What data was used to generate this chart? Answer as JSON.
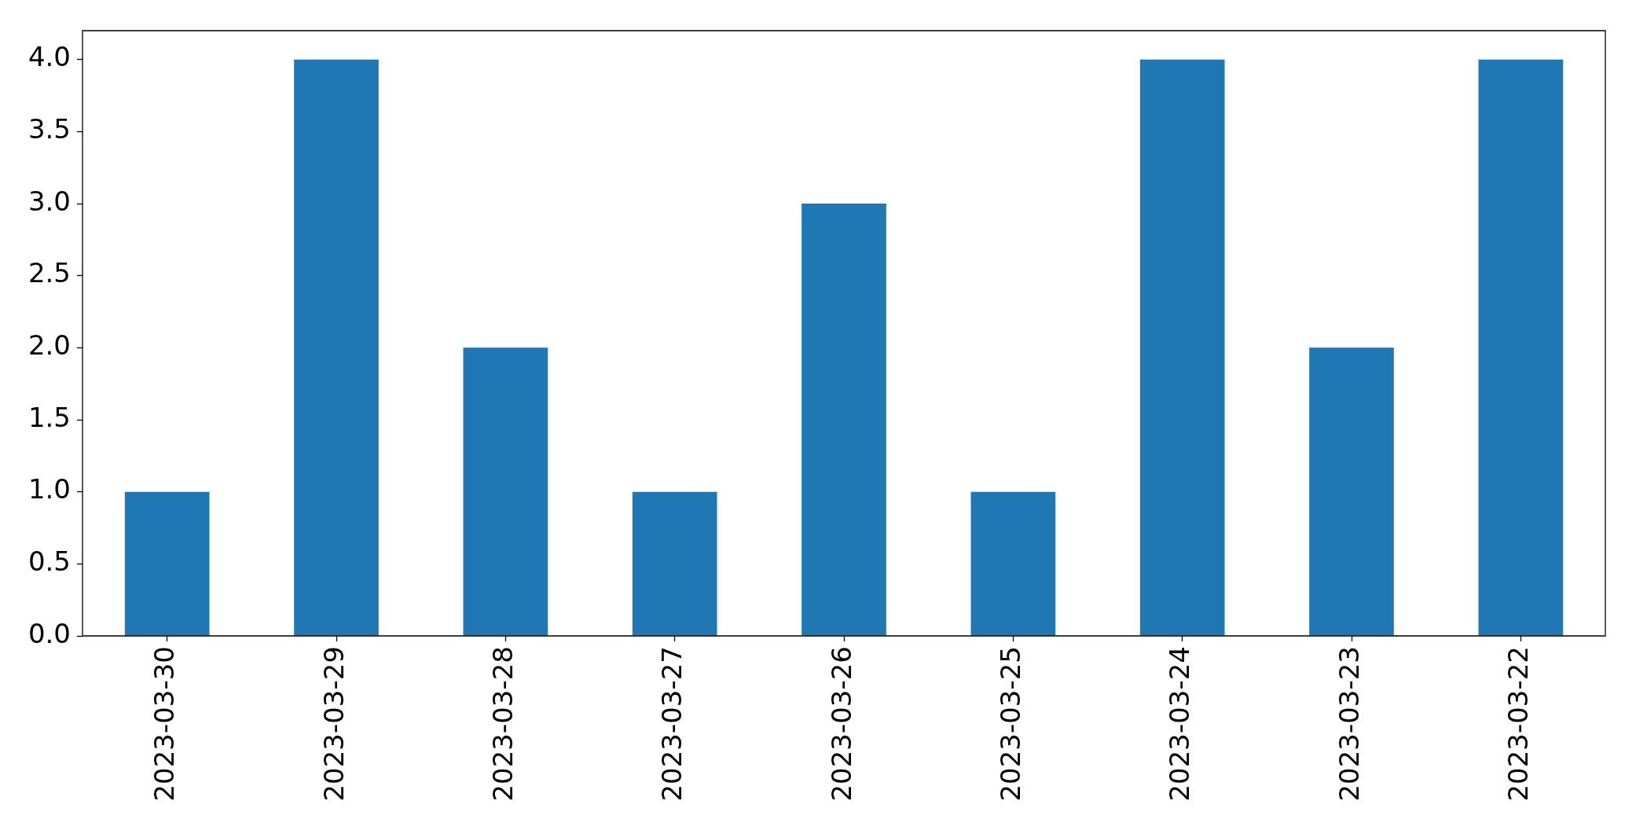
{
  "chart_data": {
    "type": "bar",
    "categories": [
      "2023-03-30",
      "2023-03-29",
      "2023-03-28",
      "2023-03-27",
      "2023-03-26",
      "2023-03-25",
      "2023-03-24",
      "2023-03-23",
      "2023-03-22"
    ],
    "values": [
      1,
      4,
      2,
      1,
      3,
      1,
      4,
      2,
      4
    ],
    "color": "#1f77b4",
    "ylim": [
      0,
      4.2
    ],
    "yticks": [
      {
        "value": 0,
        "label": "0.0"
      },
      {
        "value": 0.5,
        "label": "0.5"
      },
      {
        "value": 1,
        "label": "1.0"
      },
      {
        "value": 1.5,
        "label": "1.5"
      },
      {
        "value": 2,
        "label": "2.0"
      },
      {
        "value": 2.5,
        "label": "2.5"
      },
      {
        "value": 3,
        "label": "3.0"
      },
      {
        "value": 3.5,
        "label": "3.5"
      },
      {
        "value": 4,
        "label": "4.0"
      }
    ],
    "legend": false
  }
}
